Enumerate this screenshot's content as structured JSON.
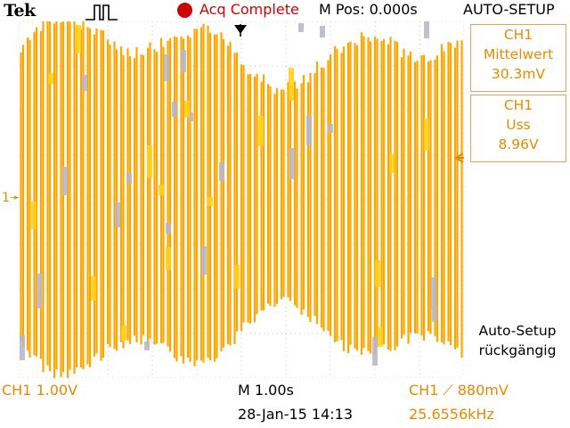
{
  "header": {
    "logo": "Tek",
    "acq_status": "Acq Complete",
    "m_pos": "M Pos: 0.000s",
    "menu_title": "AUTO-SETUP"
  },
  "side_menu": {
    "meas1": {
      "channel": "CH1",
      "type": "Mittelwert",
      "value": "30.3mV"
    },
    "meas2": {
      "channel": "CH1",
      "type": "Uss",
      "value": "8.96V"
    },
    "undo": {
      "line1": "Auto-Setup",
      "line2": "rückgängig"
    }
  },
  "footer": {
    "ch1_scale": "CH1  1.00V",
    "timebase": "M 1.00s",
    "date_time": "28-Jan-15 14:13",
    "trigger": "CH1 ⟋ 880mV",
    "frequency": "25.6556kHz"
  },
  "markers": {
    "ch1_ground": "1"
  },
  "colors": {
    "trace": "#ffa500",
    "trace_bright": "#ffd21a",
    "grid": "#c0c0c0",
    "label": "#e48a00",
    "acq": "#d10000"
  }
}
